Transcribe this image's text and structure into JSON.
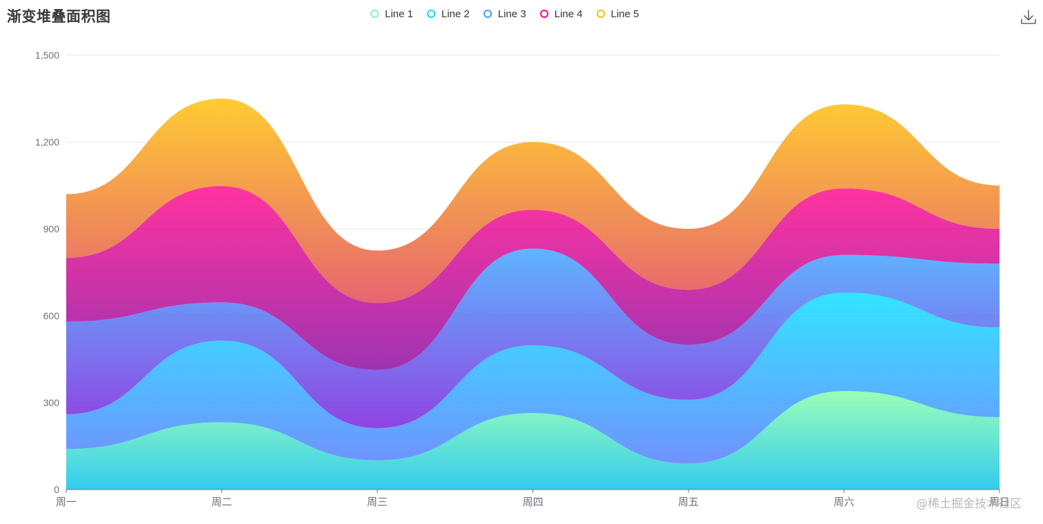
{
  "chart_data": {
    "type": "area",
    "stacked": true,
    "smooth": true,
    "title": "渐变堆叠面积图",
    "xlabel": "",
    "ylabel": "",
    "ylim": [
      0,
      1500
    ],
    "yticks": [
      0,
      300,
      600,
      900,
      1200,
      1500
    ],
    "ytick_labels": [
      "0",
      "300",
      "600",
      "900",
      "1,200",
      "1,500"
    ],
    "grid": true,
    "legend_position": "top-center",
    "categories": [
      "周一",
      "周二",
      "周三",
      "周四",
      "周五",
      "周六",
      "周日"
    ],
    "series": [
      {
        "name": "Line 1",
        "values": [
          140,
          232,
          101,
          264,
          90,
          340,
          250
        ],
        "color_top": "#80FFA5",
        "color_bottom": "#01BFEC",
        "legend_color": "#80FFA5"
      },
      {
        "name": "Line 2",
        "values": [
          120,
          282,
          111,
          234,
          220,
          340,
          310
        ],
        "color_top": "#00DDFF",
        "color_bottom": "#4D77FF",
        "legend_color": "#00DDFF"
      },
      {
        "name": "Line 3",
        "values": [
          320,
          132,
          201,
          334,
          190,
          130,
          220
        ],
        "color_top": "#37A2FF",
        "color_bottom": "#7415DB",
        "legend_color": "#37A2FF"
      },
      {
        "name": "Line 4",
        "values": [
          220,
          402,
          231,
          134,
          190,
          230,
          120
        ],
        "color_top": "#FF0087",
        "color_bottom": "#87009D",
        "legend_color": "#FF0087"
      },
      {
        "name": "Line 5",
        "values": [
          220,
          302,
          181,
          234,
          210,
          290,
          150
        ],
        "color_top": "#FFBF00",
        "color_bottom": "#E03E4C",
        "legend_color": "#FFBF00"
      }
    ]
  },
  "toolbar": {
    "download_icon": "download-icon"
  },
  "watermark": "@稀土掘金技术社区"
}
